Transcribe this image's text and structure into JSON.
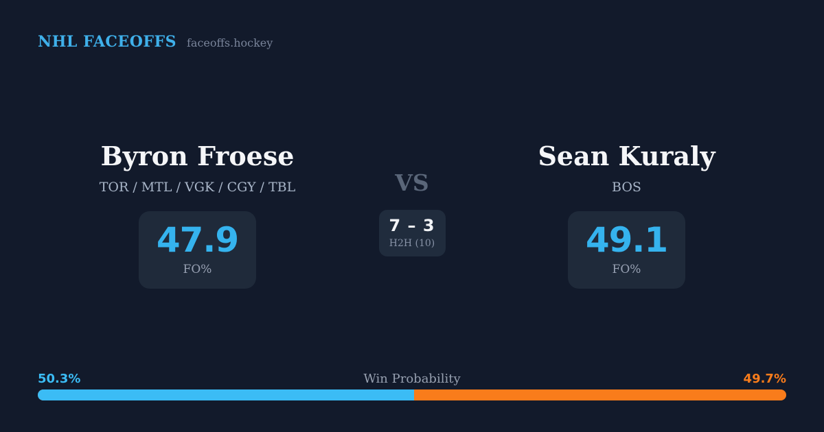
{
  "header": {
    "brand": "NHL FACEOFFS",
    "site": "faceoffs.hockey"
  },
  "matchup": {
    "vs_label": "VS",
    "h2h": {
      "score": "7 – 3",
      "label": "H2H (10)"
    },
    "players": [
      {
        "name": "Byron Froese",
        "teams": "TOR / MTL / VGK / CGY / TBL",
        "fo_pct": "47.9",
        "stat_label": "FO%"
      },
      {
        "name": "Sean Kuraly",
        "teams": "BOS",
        "fo_pct": "49.1",
        "stat_label": "FO%"
      }
    ]
  },
  "win_probability": {
    "title": "Win Probability",
    "left_label": "50.3%",
    "right_label": "49.7%",
    "left_pct": 50.3,
    "right_pct": 49.7,
    "left_color": "#3bbcf5",
    "right_color": "#f97c1b"
  },
  "colors": {
    "background": "#121a2b",
    "card_background": "#1f2a3a",
    "accent_blue": "#35b3ee",
    "accent_orange": "#f97c1b"
  },
  "chart_data": {
    "type": "bar",
    "title": "Win Probability",
    "categories": [
      "Byron Froese",
      "Sean Kuraly"
    ],
    "values": [
      50.3,
      49.7
    ],
    "unit": "%",
    "colors": [
      "#3bbcf5",
      "#f97c1b"
    ],
    "orientation": "horizontal-stacked",
    "xlim": [
      0,
      100
    ]
  }
}
